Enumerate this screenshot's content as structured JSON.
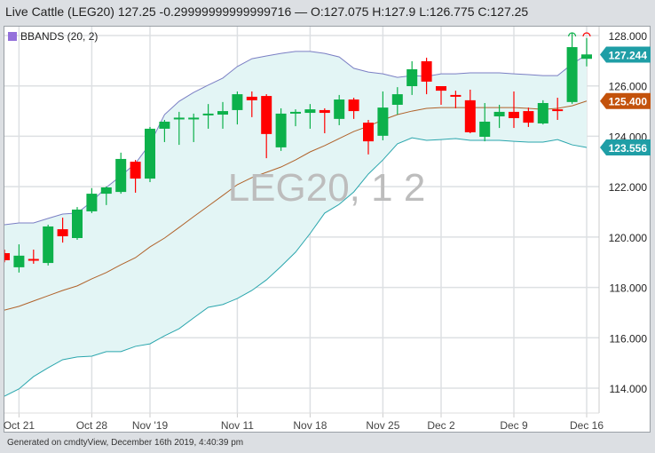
{
  "header": {
    "title": "Live Cattle (LEG20) 127.25 -0.29999999999999716 — O:127.075 H:127.9 L:126.775 C:127.25"
  },
  "footer": {
    "text": "Generated on cmdtyView, December 16th 2019, 4:40:39 pm"
  },
  "legend": {
    "label": "BBANDS (20, 2)",
    "color": "#9370db"
  },
  "watermark": "LEG20, 1 2",
  "colors": {
    "up": "#0db14b",
    "down": "#ff0000",
    "upper_band": "#7b7fc4",
    "middle_band": "#b0622a",
    "lower_band": "#2aa6ad",
    "band_fill": "#e3f5f5",
    "tag_upper": "#1f9ea6",
    "tag_middle": "#c3520b",
    "tag_lower": "#1f9ea6"
  },
  "chart_data": {
    "type": "candlestick",
    "ylim": [
      113,
      128.5
    ],
    "y_ticks": [
      "114.000",
      "116.000",
      "118.000",
      "120.000",
      "122.000",
      "124.000",
      "126.000",
      "128.000"
    ],
    "x_tick_labels": [
      {
        "date": "Oct 21",
        "label": "Oct 21"
      },
      {
        "date": "Oct 28",
        "label": "Oct 28"
      },
      {
        "date": "Nov 1",
        "label": "Nov '19"
      },
      {
        "date": "Nov 11",
        "label": "Nov 11"
      },
      {
        "date": "Nov 18",
        "label": "Nov 18"
      },
      {
        "date": "Nov 25",
        "label": "Nov 25"
      },
      {
        "date": "Dec 2",
        "label": "Dec 2"
      },
      {
        "date": "Dec 9",
        "label": "Dec 9"
      },
      {
        "date": "Dec 16",
        "label": "Dec 16"
      }
    ],
    "grid": true,
    "candles": [
      [
        "Oct 18",
        119.36,
        119.5,
        119.0,
        119.08
      ],
      [
        "Oct 21",
        118.8,
        119.71,
        118.59,
        119.26
      ],
      [
        "Oct 22",
        119.13,
        119.5,
        118.94,
        119.1
      ],
      [
        "Oct 23",
        118.97,
        120.49,
        118.87,
        120.42
      ],
      [
        "Oct 24",
        120.31,
        120.77,
        119.78,
        120.03
      ],
      [
        "Oct 25",
        119.96,
        121.19,
        119.89,
        121.09
      ],
      [
        "Oct 28",
        121.02,
        121.94,
        120.95,
        121.72
      ],
      [
        "Oct 29",
        121.72,
        122.01,
        121.27,
        121.97
      ],
      [
        "Oct 30",
        121.79,
        123.35,
        121.72,
        123.1
      ],
      [
        "Oct 31",
        122.99,
        123.06,
        121.76,
        122.32
      ],
      [
        "Nov 1",
        122.32,
        124.37,
        122.18,
        124.3
      ],
      [
        "Nov 4",
        124.3,
        124.65,
        123.77,
        124.58
      ],
      [
        "Nov 5",
        124.7,
        124.97,
        123.66,
        124.74
      ],
      [
        "Nov 6",
        124.7,
        124.9,
        123.77,
        124.74
      ],
      [
        "Nov 7",
        124.84,
        125.28,
        124.3,
        124.9
      ],
      [
        "Nov 8",
        124.86,
        125.36,
        124.3,
        125.0
      ],
      [
        "Nov 11",
        125.04,
        125.78,
        124.47,
        125.67
      ],
      [
        "Nov 12",
        125.57,
        125.78,
        124.76,
        125.43
      ],
      [
        "Nov 13",
        125.6,
        125.67,
        123.13,
        124.09
      ],
      [
        "Nov 14",
        123.56,
        125.11,
        123.42,
        124.9
      ],
      [
        "Nov 15",
        124.93,
        125.07,
        124.4,
        124.97
      ],
      [
        "Nov 18",
        124.93,
        125.28,
        124.3,
        125.07
      ],
      [
        "Nov 19",
        125.04,
        125.11,
        124.12,
        124.93
      ],
      [
        "Nov 20",
        124.69,
        125.64,
        124.44,
        125.46
      ],
      [
        "Nov 21",
        125.46,
        125.53,
        124.69,
        125.0
      ],
      [
        "Nov 22",
        124.54,
        124.65,
        123.28,
        123.8
      ],
      [
        "Nov 25",
        124.02,
        125.78,
        123.84,
        125.14
      ],
      [
        "Nov 26",
        125.25,
        125.95,
        124.86,
        125.67
      ],
      [
        "Nov 27",
        125.99,
        126.98,
        125.64,
        126.66
      ],
      [
        "Nov 29",
        126.98,
        127.12,
        125.67,
        126.17
      ],
      [
        "Dec 2",
        125.99,
        125.99,
        125.25,
        125.81
      ],
      [
        "Dec 3",
        125.64,
        125.81,
        125.11,
        125.6
      ],
      [
        "Dec 4",
        125.43,
        125.85,
        124.12,
        124.16
      ],
      [
        "Dec 5",
        123.98,
        125.32,
        123.8,
        124.58
      ],
      [
        "Dec 6",
        124.79,
        125.25,
        124.33,
        124.97
      ],
      [
        "Dec 9",
        124.97,
        125.78,
        124.33,
        124.72
      ],
      [
        "Dec 10",
        125.0,
        125.14,
        124.37,
        124.54
      ],
      [
        "Dec 11",
        124.51,
        125.43,
        124.47,
        125.32
      ],
      [
        "Dec 12",
        125.07,
        125.53,
        124.65,
        125.04
      ],
      [
        "Dec 13",
        125.36,
        128.11,
        125.29,
        127.54
      ],
      [
        "Dec 16",
        127.075,
        127.9,
        126.775,
        127.25
      ]
    ],
    "bbands": {
      "upper": [
        120.49,
        120.56,
        120.56,
        120.74,
        120.91,
        120.95,
        121.41,
        121.97,
        122.43,
        122.92,
        123.7,
        124.86,
        125.39,
        125.74,
        126.03,
        126.31,
        126.77,
        127.08,
        127.19,
        127.29,
        127.37,
        127.37,
        127.29,
        127.15,
        126.7,
        126.55,
        126.48,
        126.34,
        126.41,
        126.38,
        126.48,
        126.48,
        126.52,
        126.52,
        126.52,
        126.48,
        126.45,
        126.41,
        126.41,
        126.87,
        127.244
      ],
      "middle": [
        117.1,
        117.25,
        117.46,
        117.67,
        117.88,
        118.06,
        118.34,
        118.59,
        118.9,
        119.18,
        119.61,
        119.96,
        120.38,
        120.81,
        121.23,
        121.65,
        122.08,
        122.36,
        122.57,
        122.78,
        123.06,
        123.38,
        123.63,
        123.91,
        124.19,
        124.4,
        124.65,
        124.86,
        125.0,
        125.11,
        125.14,
        125.14,
        125.14,
        125.14,
        125.14,
        125.14,
        125.11,
        125.07,
        125.11,
        125.21,
        125.4
      ],
      "lower": [
        113.68,
        113.97,
        114.46,
        114.81,
        115.13,
        115.24,
        115.27,
        115.45,
        115.45,
        115.66,
        115.76,
        116.08,
        116.36,
        116.79,
        117.21,
        117.32,
        117.56,
        117.88,
        118.3,
        118.83,
        119.4,
        120.14,
        120.95,
        121.3,
        121.79,
        122.5,
        123.06,
        123.7,
        123.94,
        123.84,
        123.87,
        123.91,
        123.84,
        123.84,
        123.84,
        123.8,
        123.77,
        123.77,
        123.87,
        123.66,
        123.556
      ]
    },
    "last_value_tags": {
      "upper": "127.244",
      "middle": "125.400",
      "lower": "123.556"
    }
  }
}
